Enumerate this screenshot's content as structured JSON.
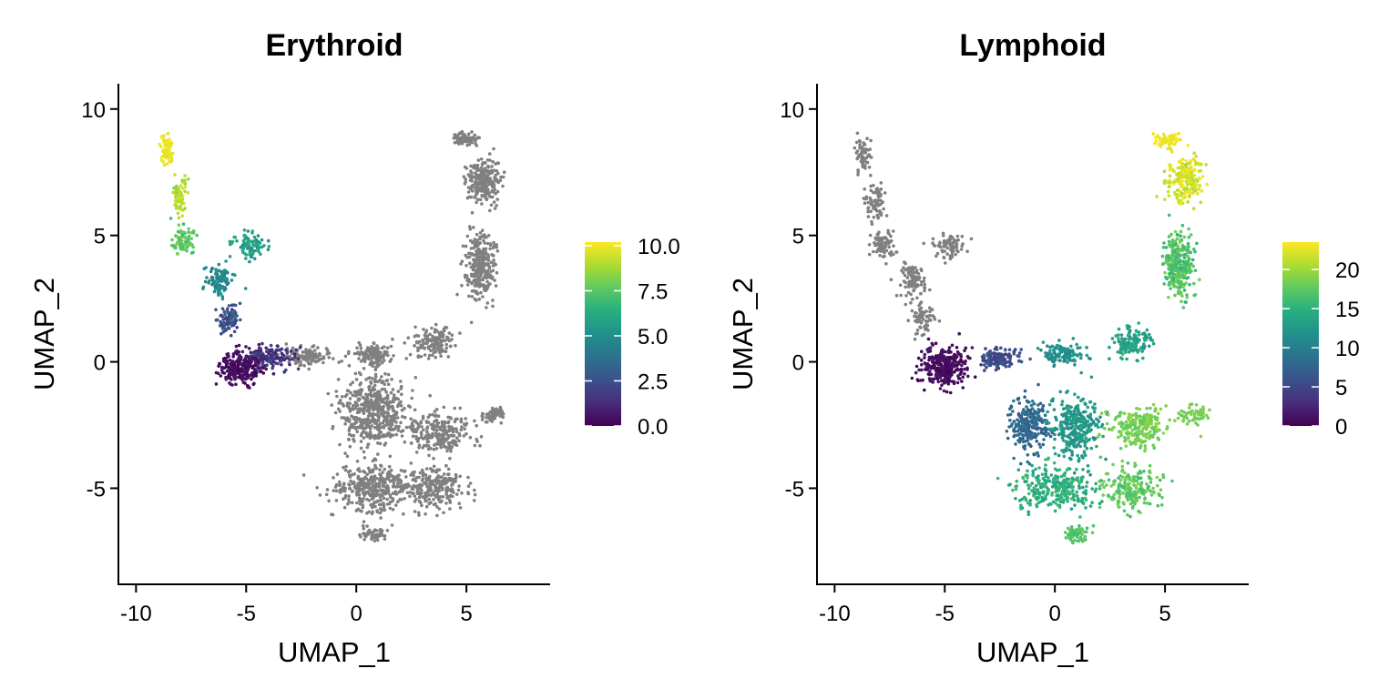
{
  "chart_data": [
    {
      "type": "scatter",
      "title": "Erythroid",
      "xlabel": "UMAP_1",
      "ylabel": "UMAP_2",
      "xlim": [
        -10.8,
        8.8
      ],
      "ylim": [
        -8.8,
        11.0
      ],
      "xticks": [
        -10,
        -5,
        0,
        5
      ],
      "xtick_labels": [
        "-10",
        "-5",
        "0",
        "5"
      ],
      "yticks": [
        -5,
        0,
        5,
        10
      ],
      "ytick_labels": [
        "-5",
        "0",
        "5",
        "10"
      ],
      "grid": false,
      "legend": "right",
      "colorbar": {
        "palette": "viridis",
        "min": 0,
        "max": 10.2,
        "ticks": [
          0,
          2.5,
          5,
          7.5,
          10
        ],
        "tick_labels": [
          "0.0",
          "2.5",
          "5.0",
          "7.5",
          "10.0"
        ]
      },
      "na_color": "#808080",
      "regions": [
        {
          "name": "top-left tip",
          "center": [
            -8.6,
            8.4
          ],
          "spread": [
            0.3,
            0.6
          ],
          "n": 70,
          "value": [
            9.6,
            10.2
          ]
        },
        {
          "name": "upper-left arm",
          "center": [
            -8.0,
            6.6
          ],
          "spread": [
            0.3,
            0.6
          ],
          "n": 70,
          "value": [
            8.4,
            9.6
          ]
        },
        {
          "name": "left arm lower",
          "center": [
            -7.9,
            4.8
          ],
          "spread": [
            0.4,
            0.5
          ],
          "n": 80,
          "value": [
            6.8,
            8.2
          ]
        },
        {
          "name": "right arm",
          "center": [
            -4.8,
            4.6
          ],
          "spread": [
            0.7,
            0.4
          ],
          "n": 90,
          "value": [
            5.0,
            6.5
          ]
        },
        {
          "name": "stem upper",
          "center": [
            -6.2,
            3.2
          ],
          "spread": [
            0.5,
            0.6
          ],
          "n": 90,
          "value": [
            4.0,
            5.5
          ]
        },
        {
          "name": "stem lower",
          "center": [
            -5.8,
            1.7
          ],
          "spread": [
            0.5,
            0.5
          ],
          "n": 90,
          "value": [
            1.8,
            3.4
          ]
        },
        {
          "name": "left bulb",
          "center": [
            -5.2,
            -0.2
          ],
          "spread": [
            0.9,
            0.6
          ],
          "n": 280,
          "value": [
            0.0,
            0.8
          ]
        },
        {
          "name": "left bulb edge",
          "center": [
            -3.8,
            0.2
          ],
          "spread": [
            0.9,
            0.5
          ],
          "n": 110,
          "value": [
            0.8,
            2.4
          ]
        }
      ],
      "gray_regions": [
        {
          "name": "bridge",
          "center": [
            -2.2,
            0.2
          ],
          "spread": [
            1.0,
            0.3
          ],
          "n": 120
        },
        {
          "name": "central body",
          "center": [
            0.8,
            -2.0
          ],
          "spread": [
            1.4,
            1.3
          ],
          "n": 520
        },
        {
          "name": "central neck",
          "center": [
            0.8,
            0.3
          ],
          "spread": [
            0.9,
            0.4
          ],
          "n": 120
        },
        {
          "name": "lower body",
          "center": [
            0.9,
            -5.0
          ],
          "spread": [
            1.9,
            0.8
          ],
          "n": 380
        },
        {
          "name": "bottom tip",
          "center": [
            0.8,
            -6.8
          ],
          "spread": [
            0.6,
            0.3
          ],
          "n": 50
        },
        {
          "name": "right lobe",
          "center": [
            3.8,
            -2.8
          ],
          "spread": [
            1.2,
            0.7
          ],
          "n": 230
        },
        {
          "name": "right lobe tip",
          "center": [
            6.2,
            -2.1
          ],
          "spread": [
            0.6,
            0.3
          ],
          "n": 60
        },
        {
          "name": "lower right",
          "center": [
            3.6,
            -5.0
          ],
          "spread": [
            1.1,
            0.7
          ],
          "n": 200
        },
        {
          "name": "arc lower",
          "center": [
            3.6,
            0.8
          ],
          "spread": [
            0.8,
            0.6
          ],
          "n": 130
        },
        {
          "name": "arc middle",
          "center": [
            5.6,
            3.8
          ],
          "spread": [
            0.6,
            1.2
          ],
          "n": 280
        },
        {
          "name": "arc upper",
          "center": [
            5.8,
            7.2
          ],
          "spread": [
            0.7,
            0.8
          ],
          "n": 220
        },
        {
          "name": "arc top",
          "center": [
            4.9,
            8.8
          ],
          "spread": [
            0.5,
            0.2
          ],
          "n": 80
        }
      ]
    },
    {
      "type": "scatter",
      "title": "Lymphoid",
      "xlabel": "UMAP_1",
      "ylabel": "UMAP_2",
      "xlim": [
        -10.8,
        8.8
      ],
      "ylim": [
        -8.8,
        11.0
      ],
      "xticks": [
        -10,
        -5,
        0,
        5
      ],
      "xtick_labels": [
        "-10",
        "-5",
        "0",
        "5"
      ],
      "yticks": [
        -5,
        0,
        5,
        10
      ],
      "ytick_labels": [
        "-5",
        "0",
        "5",
        "10"
      ],
      "grid": false,
      "legend": "right",
      "colorbar": {
        "palette": "viridis",
        "min": 0,
        "max": 23.5,
        "ticks": [
          0,
          5,
          10,
          15,
          20
        ],
        "tick_labels": [
          "0",
          "5",
          "10",
          "15",
          "20"
        ]
      },
      "na_color": "#808080",
      "regions": [
        {
          "name": "left bulb",
          "center": [
            -5.0,
            -0.2
          ],
          "spread": [
            0.9,
            0.7
          ],
          "n": 300,
          "value": [
            0.0,
            1.5
          ]
        },
        {
          "name": "bridge",
          "center": [
            -2.5,
            0.1
          ],
          "spread": [
            0.8,
            0.4
          ],
          "n": 130,
          "value": [
            4.0,
            7.0
          ]
        },
        {
          "name": "central neck",
          "center": [
            0.4,
            0.3
          ],
          "spread": [
            0.8,
            0.4
          ],
          "n": 120,
          "value": [
            10.0,
            13.0
          ]
        },
        {
          "name": "left body",
          "center": [
            -1.2,
            -2.5
          ],
          "spread": [
            0.8,
            1.0
          ],
          "n": 230,
          "value": [
            6.5,
            9.5
          ]
        },
        {
          "name": "central body",
          "center": [
            1.0,
            -2.6
          ],
          "spread": [
            1.0,
            1.1
          ],
          "n": 300,
          "value": [
            11.0,
            14.0
          ]
        },
        {
          "name": "lower body",
          "center": [
            0.0,
            -5.0
          ],
          "spread": [
            1.6,
            0.8
          ],
          "n": 300,
          "value": [
            13.0,
            16.5
          ]
        },
        {
          "name": "bottom tip",
          "center": [
            1.0,
            -6.8
          ],
          "spread": [
            0.6,
            0.3
          ],
          "n": 60,
          "value": [
            16.0,
            18.0
          ]
        },
        {
          "name": "lower right",
          "center": [
            3.5,
            -5.0
          ],
          "spread": [
            1.1,
            0.7
          ],
          "n": 200,
          "value": [
            16.0,
            19.0
          ]
        },
        {
          "name": "right lobe",
          "center": [
            3.8,
            -2.6
          ],
          "spread": [
            1.2,
            0.7
          ],
          "n": 230,
          "value": [
            17.5,
            19.5
          ]
        },
        {
          "name": "right lobe tip",
          "center": [
            6.3,
            -2.1
          ],
          "spread": [
            0.6,
            0.3
          ],
          "n": 60,
          "value": [
            18.0,
            19.0
          ]
        },
        {
          "name": "arc lower",
          "center": [
            3.5,
            0.8
          ],
          "spread": [
            0.8,
            0.6
          ],
          "n": 130,
          "value": [
            12.0,
            15.0
          ]
        },
        {
          "name": "arc middle",
          "center": [
            5.6,
            3.8
          ],
          "spread": [
            0.6,
            1.2
          ],
          "n": 280,
          "value": [
            15.0,
            19.0
          ]
        },
        {
          "name": "arc upper",
          "center": [
            5.9,
            7.2
          ],
          "spread": [
            0.7,
            0.8
          ],
          "n": 220,
          "value": [
            20.5,
            23.5
          ]
        },
        {
          "name": "arc top",
          "center": [
            5.1,
            8.8
          ],
          "spread": [
            0.6,
            0.2
          ],
          "n": 80,
          "value": [
            22.5,
            23.5
          ]
        }
      ],
      "gray_regions": [
        {
          "name": "top-left tip",
          "center": [
            -8.7,
            8.2
          ],
          "spread": [
            0.3,
            0.7
          ],
          "n": 70
        },
        {
          "name": "upper-left arm",
          "center": [
            -8.2,
            6.3
          ],
          "spread": [
            0.4,
            0.7
          ],
          "n": 80
        },
        {
          "name": "left arm lower",
          "center": [
            -7.8,
            4.6
          ],
          "spread": [
            0.5,
            0.5
          ],
          "n": 80
        },
        {
          "name": "right arm",
          "center": [
            -4.8,
            4.6
          ],
          "spread": [
            0.7,
            0.4
          ],
          "n": 80
        },
        {
          "name": "stem upper",
          "center": [
            -6.4,
            3.2
          ],
          "spread": [
            0.5,
            0.6
          ],
          "n": 90
        },
        {
          "name": "stem lower",
          "center": [
            -6.0,
            1.7
          ],
          "spread": [
            0.5,
            0.5
          ],
          "n": 70
        }
      ]
    }
  ]
}
